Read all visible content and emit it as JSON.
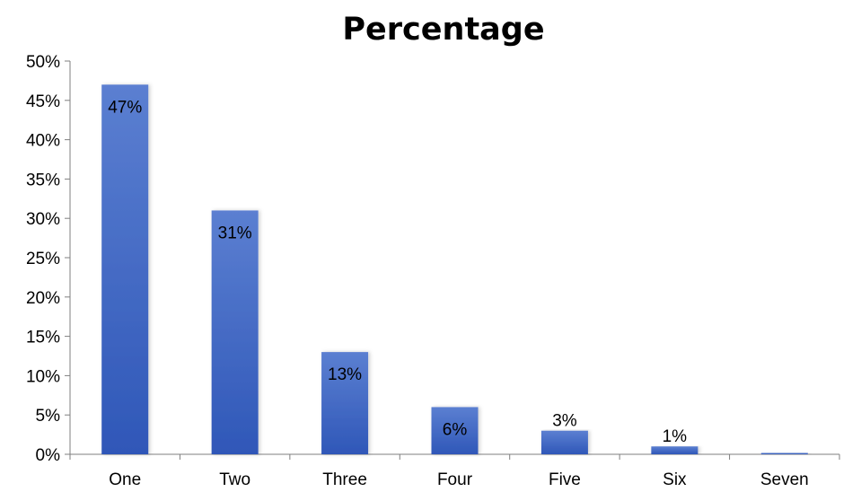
{
  "chart_data": {
    "type": "bar",
    "title": "Percentage",
    "xlabel": "",
    "ylabel": "",
    "categories": [
      "One",
      "Two",
      "Three",
      "Four",
      "Five",
      "Six",
      "Seven"
    ],
    "values": [
      47,
      31,
      13,
      6,
      3,
      1,
      0
    ],
    "data_labels": [
      "47%",
      "31%",
      "13%",
      "6%",
      "3%",
      "1%",
      ""
    ],
    "ylim": [
      0,
      50
    ],
    "y_ticks": [
      0,
      5,
      10,
      15,
      20,
      25,
      30,
      35,
      40,
      45,
      50
    ],
    "y_tick_labels": [
      "0%",
      "5%",
      "10%",
      "15%",
      "20%",
      "25%",
      "30%",
      "35%",
      "40%",
      "45%",
      "50%"
    ],
    "grid": false,
    "legend": "none",
    "colors": {
      "bar_top": "#5b7fd1",
      "bar_bottom": "#2f57b8",
      "axis": "#7f7f7f"
    }
  }
}
